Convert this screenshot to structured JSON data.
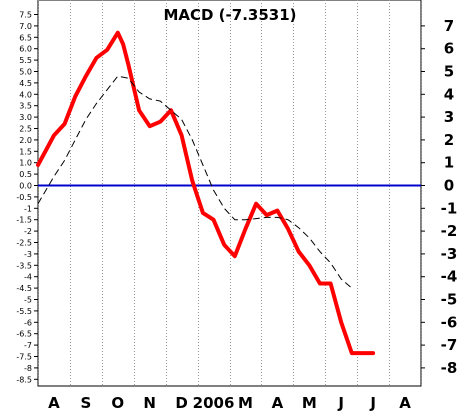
{
  "chart_data": {
    "type": "line",
    "title": "MACD (-7.3531)",
    "xlabel": "",
    "ylabel": "",
    "ylim": [
      -8.5,
      7.5
    ],
    "x_labels": [
      "A",
      "S",
      "O",
      "N",
      "D",
      "2006",
      "M",
      "A",
      "M",
      "J",
      "J",
      "A"
    ],
    "left_ticks": [
      "7.5",
      "7.0",
      "6.5",
      "6.0",
      "5.5",
      "5.0",
      "4.5",
      "4.0",
      "3.5",
      "3.0",
      "2.5",
      "2.0",
      "1.5",
      "1.0",
      "0.5",
      "0.0",
      "-0.5",
      "-1",
      "-1.5",
      "-2",
      "-2.5",
      "-3",
      "-3.5",
      "-4",
      "-4.5",
      "-5",
      "-5.5",
      "-6",
      "-6.5",
      "-7",
      "-7.5",
      "-8",
      "-8.5"
    ],
    "right_ticks": [
      "7",
      "6",
      "5",
      "4",
      "3",
      "2",
      "1",
      "0",
      "-1",
      "-2",
      "-3",
      "-4",
      "-5",
      "-6",
      "-7",
      "-8"
    ],
    "zero_line": 0,
    "colors": {
      "macd": "#ff0000",
      "signal": "#000000",
      "zero": "#0000cc"
    },
    "series": [
      {
        "style": "solid-thick-red",
        "x": [
          0,
          1.5,
          2.5,
          3.5,
          4.5,
          5.5,
          6.5,
          7.5,
          8.0,
          8.5,
          9.5,
          10.5,
          11.5,
          12.5,
          13.5,
          14.5,
          15.5,
          16.5,
          17.5,
          18.5,
          19.5,
          20.5,
          21.5,
          22.5,
          23.5,
          24.5,
          25.5,
          26.5,
          27.5,
          28.5,
          29.5,
          30.5,
          31.5
        ],
        "y": [
          0.9,
          2.2,
          2.7,
          3.9,
          4.8,
          5.6,
          5.95,
          6.7,
          6.2,
          5.3,
          3.3,
          2.6,
          2.8,
          3.3,
          2.2,
          0.2,
          -1.2,
          -1.5,
          -2.6,
          -3.1,
          -1.9,
          -0.8,
          -1.3,
          -1.1,
          -1.9,
          -2.9,
          -3.5,
          -4.3,
          -4.3,
          -6.0,
          -7.35,
          -7.35,
          -7.35
        ]
      },
      {
        "style": "dashed-black",
        "x": [
          0,
          1.5,
          2.5,
          3.5,
          4.5,
          5.5,
          6.5,
          7.5,
          8.5,
          9.5,
          10.5,
          11.5,
          12.5,
          13.5,
          14.5,
          15.5,
          16.5,
          17.5,
          18.5,
          19.5,
          20.5,
          21.5,
          22.5,
          23.5,
          24.5,
          25.5,
          26.5,
          27.5,
          28.5,
          29.5
        ],
        "y": [
          -0.8,
          0.4,
          1.1,
          2.0,
          2.9,
          3.6,
          4.2,
          4.8,
          4.7,
          4.1,
          3.8,
          3.7,
          3.3,
          2.9,
          2.0,
          0.9,
          -0.2,
          -1.0,
          -1.5,
          -1.5,
          -1.45,
          -1.4,
          -1.4,
          -1.5,
          -1.85,
          -2.3,
          -2.9,
          -3.4,
          -4.1,
          -4.5
        ]
      }
    ]
  }
}
